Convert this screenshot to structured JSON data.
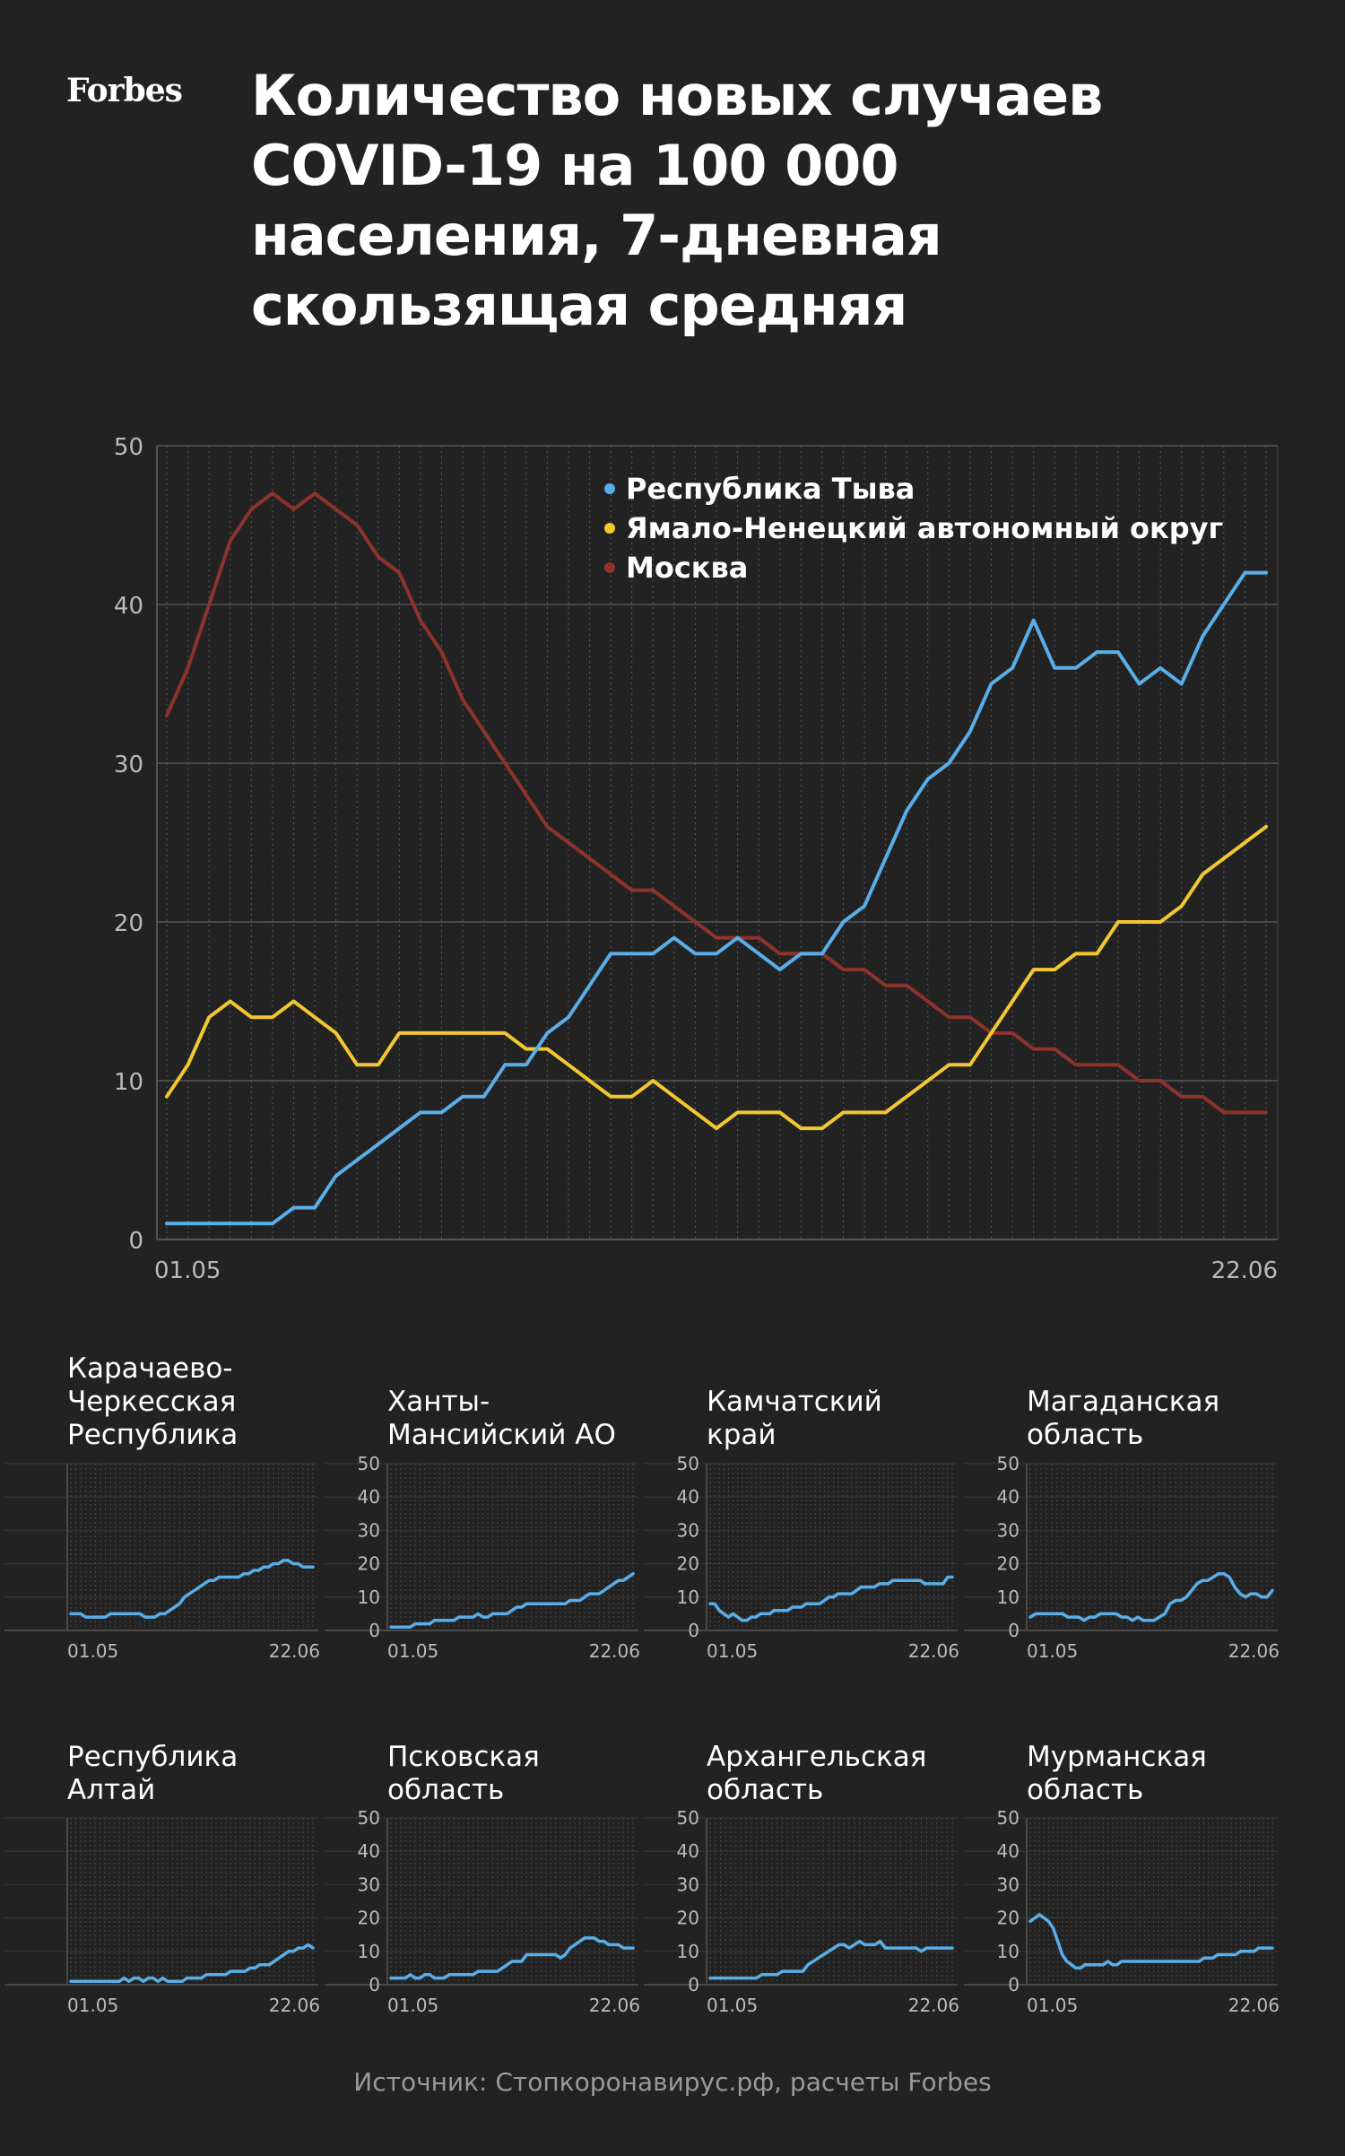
{
  "header": {
    "logo": "Forbes",
    "title_lines": [
      "Количество новых случаев",
      "COVID-19 на 100 000",
      "населения, 7-дневная",
      "скользящая средняя"
    ]
  },
  "source": "Источник: Стопкоронавирус.рф, расчеты Forbes",
  "colors": {
    "background": "#222222",
    "tuva": "#5aaee8",
    "yamal": "#f2c830",
    "moscow": "#8e332c",
    "grid": "#4a4a4a",
    "axis_text": "#bbbbbb"
  },
  "chart_data": [
    {
      "type": "line",
      "xlabel": "",
      "ylabel": "",
      "ylim": [
        0,
        50
      ],
      "yticks": [
        0,
        10,
        20,
        30,
        40,
        50
      ],
      "x_tick_labels": [
        "01.05",
        "22.06"
      ],
      "x_range": [
        "01.05",
        "22.06"
      ],
      "grid": true,
      "legend_position": "top-right",
      "series": [
        {
          "name": "Республика Тыва",
          "color": "#5aaee8",
          "values": [
            1,
            1,
            1,
            1,
            1,
            1,
            2,
            2,
            4,
            5,
            6,
            7,
            8,
            8,
            9,
            9,
            11,
            11,
            13,
            14,
            16,
            18,
            18,
            18,
            19,
            18,
            18,
            19,
            18,
            17,
            18,
            18,
            20,
            21,
            24,
            27,
            29,
            30,
            32,
            35,
            36,
            39,
            36,
            36,
            37,
            37,
            35,
            36,
            35,
            38,
            40,
            42,
            42
          ]
        },
        {
          "name": "Ямало-Ненецкий автономный округ",
          "color": "#f2c830",
          "values": [
            9,
            11,
            14,
            15,
            14,
            14,
            15,
            14,
            13,
            11,
            11,
            13,
            13,
            13,
            13,
            13,
            13,
            12,
            12,
            11,
            10,
            9,
            9,
            10,
            9,
            8,
            7,
            8,
            8,
            8,
            7,
            7,
            8,
            8,
            8,
            9,
            10,
            11,
            11,
            13,
            15,
            17,
            17,
            18,
            18,
            20,
            20,
            20,
            21,
            23,
            24,
            25,
            26
          ]
        },
        {
          "name": "Москва",
          "color": "#8e332c",
          "values": [
            33,
            36,
            40,
            44,
            46,
            47,
            46,
            47,
            46,
            45,
            43,
            42,
            39,
            37,
            34,
            32,
            30,
            28,
            26,
            25,
            24,
            23,
            22,
            22,
            21,
            20,
            19,
            19,
            19,
            18,
            18,
            18,
            17,
            17,
            16,
            16,
            15,
            14,
            14,
            13,
            13,
            12,
            12,
            11,
            11,
            11,
            10,
            10,
            9,
            9,
            8,
            8,
            8
          ]
        }
      ]
    },
    {
      "type": "line",
      "title": "Карачаево-Черкесская Республика",
      "title_lines": [
        "Карачаево-",
        "Черкесская",
        "Республика"
      ],
      "ylim": [
        0,
        50
      ],
      "x_tick_labels": [
        "01.05",
        "22.06"
      ],
      "series": [
        {
          "color": "#5aaee8",
          "values": [
            5,
            5,
            5,
            4,
            4,
            4,
            4,
            4,
            5,
            5,
            5,
            5,
            5,
            5,
            5,
            4,
            4,
            4,
            5,
            5,
            6,
            7,
            8,
            10,
            11,
            12,
            13,
            14,
            15,
            15,
            16,
            16,
            16,
            16,
            16,
            17,
            17,
            18,
            18,
            19,
            19,
            20,
            20,
            21,
            21,
            20,
            20,
            19,
            19,
            19
          ]
        }
      ]
    },
    {
      "type": "line",
      "title": "Ханты-Мансийский АО",
      "title_lines": [
        "Ханты-",
        "Мансийский АО"
      ],
      "ylim": [
        0,
        50
      ],
      "yticks": [
        0,
        10,
        20,
        30,
        40,
        50
      ],
      "x_tick_labels": [
        "01.05",
        "22.06"
      ],
      "series": [
        {
          "color": "#5aaee8",
          "values": [
            1,
            1,
            1,
            1,
            1,
            2,
            2,
            2,
            2,
            3,
            3,
            3,
            3,
            3,
            4,
            4,
            4,
            4,
            5,
            4,
            4,
            5,
            5,
            5,
            5,
            6,
            7,
            7,
            8,
            8,
            8,
            8,
            8,
            8,
            8,
            8,
            8,
            9,
            9,
            9,
            10,
            11,
            11,
            11,
            12,
            13,
            14,
            15,
            15,
            16,
            17
          ]
        }
      ]
    },
    {
      "type": "line",
      "title": "Камчатский край",
      "title_lines": [
        "Камчатский",
        "край"
      ],
      "ylim": [
        0,
        50
      ],
      "yticks": [
        0,
        10,
        20,
        30,
        40,
        50
      ],
      "x_tick_labels": [
        "01.05",
        "22.06"
      ],
      "series": [
        {
          "color": "#5aaee8",
          "values": [
            8,
            8,
            6,
            5,
            4,
            5,
            4,
            3,
            3,
            4,
            4,
            5,
            5,
            5,
            6,
            6,
            6,
            6,
            7,
            7,
            7,
            8,
            8,
            8,
            8,
            9,
            10,
            10,
            11,
            11,
            11,
            11,
            12,
            13,
            13,
            13,
            13,
            14,
            14,
            14,
            15,
            15,
            15,
            15,
            15,
            15,
            15,
            14,
            14,
            14,
            14,
            14,
            16,
            16
          ]
        }
      ]
    },
    {
      "type": "line",
      "title": "Магаданская область",
      "title_lines": [
        "Магаданская",
        "область"
      ],
      "ylim": [
        0,
        50
      ],
      "yticks": [
        0,
        10,
        20,
        30,
        40,
        50
      ],
      "x_tick_labels": [
        "01.05",
        "22.06"
      ],
      "series": [
        {
          "color": "#5aaee8",
          "values": [
            4,
            5,
            5,
            5,
            5,
            5,
            5,
            4,
            4,
            4,
            3,
            4,
            4,
            5,
            5,
            5,
            5,
            4,
            4,
            3,
            4,
            3,
            3,
            3,
            4,
            5,
            8,
            9,
            9,
            10,
            12,
            14,
            15,
            15,
            16,
            17,
            17,
            16,
            13,
            11,
            10,
            11,
            11,
            10,
            10,
            12
          ]
        }
      ]
    },
    {
      "type": "line",
      "title": "Республика Алтай",
      "title_lines": [
        "Республика",
        "Алтай"
      ],
      "ylim": [
        0,
        50
      ],
      "x_tick_labels": [
        "01.05",
        "22.06"
      ],
      "series": [
        {
          "color": "#5aaee8",
          "values": [
            1,
            1,
            1,
            1,
            1,
            1,
            1,
            1,
            1,
            1,
            1,
            2,
            1,
            2,
            2,
            1,
            2,
            2,
            1,
            2,
            1,
            1,
            1,
            1,
            2,
            2,
            2,
            2,
            3,
            3,
            3,
            3,
            3,
            4,
            4,
            4,
            4,
            5,
            5,
            6,
            6,
            6,
            7,
            8,
            9,
            10,
            10,
            11,
            11,
            12,
            11
          ]
        }
      ]
    },
    {
      "type": "line",
      "title": "Псковская область",
      "title_lines": [
        "Псковская",
        "область"
      ],
      "ylim": [
        0,
        50
      ],
      "yticks": [
        0,
        10,
        20,
        30,
        40,
        50
      ],
      "x_tick_labels": [
        "01.05",
        "22.06"
      ],
      "series": [
        {
          "color": "#5aaee8",
          "values": [
            2,
            2,
            2,
            2,
            3,
            2,
            2,
            3,
            3,
            2,
            2,
            2,
            3,
            3,
            3,
            3,
            3,
            3,
            4,
            4,
            4,
            4,
            4,
            5,
            6,
            7,
            7,
            7,
            9,
            9,
            9,
            9,
            9,
            9,
            9,
            8,
            9,
            11,
            12,
            13,
            14,
            14,
            14,
            13,
            13,
            12,
            12,
            12,
            11,
            11,
            11
          ]
        }
      ]
    },
    {
      "type": "line",
      "title": "Архангельская область",
      "title_lines": [
        "Архангельская",
        "область"
      ],
      "ylim": [
        0,
        50
      ],
      "yticks": [
        0,
        10,
        20,
        30,
        40,
        50
      ],
      "x_tick_labels": [
        "01.05",
        "22.06"
      ],
      "series": [
        {
          "color": "#5aaee8",
          "values": [
            2,
            2,
            2,
            2,
            2,
            2,
            2,
            2,
            2,
            2,
            3,
            3,
            3,
            3,
            4,
            4,
            4,
            4,
            4,
            6,
            7,
            8,
            9,
            10,
            11,
            12,
            12,
            11,
            12,
            13,
            12,
            12,
            12,
            13,
            11,
            11,
            11,
            11,
            11,
            11,
            11,
            10,
            11,
            11,
            11,
            11,
            11,
            11
          ]
        }
      ]
    },
    {
      "type": "line",
      "title": "Мурманская область",
      "title_lines": [
        "Мурманская",
        "область"
      ],
      "ylim": [
        0,
        50
      ],
      "yticks": [
        0,
        10,
        20,
        30,
        40,
        50
      ],
      "x_tick_labels": [
        "01.05",
        "22.06"
      ],
      "series": [
        {
          "color": "#5aaee8",
          "values": [
            19,
            20,
            21,
            20,
            19,
            17,
            13,
            9,
            7,
            6,
            5,
            5,
            6,
            6,
            6,
            6,
            6,
            7,
            6,
            6,
            7,
            7,
            7,
            7,
            7,
            7,
            7,
            7,
            7,
            7,
            7,
            7,
            7,
            7,
            7,
            7,
            7,
            7,
            8,
            8,
            8,
            9,
            9,
            9,
            9,
            9,
            10,
            10,
            10,
            10,
            11,
            11,
            11,
            11
          ]
        }
      ]
    }
  ]
}
